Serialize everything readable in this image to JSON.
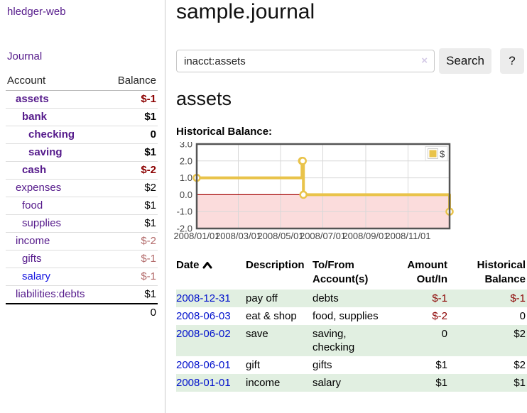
{
  "app": {
    "title": "hledger-web"
  },
  "sidebar": {
    "journal_link": "Journal",
    "accounts_table": {
      "headers": [
        "Account",
        "Balance"
      ],
      "rows": [
        {
          "name": "assets",
          "depth": 1,
          "bold": true,
          "balance": "$-1",
          "balance_negative": true,
          "link_style": "visited"
        },
        {
          "name": "bank",
          "depth": 2,
          "bold": true,
          "balance": "$1",
          "balance_negative": false,
          "link_style": "visited"
        },
        {
          "name": "checking",
          "depth": 3,
          "bold": true,
          "balance": "0",
          "balance_negative": false,
          "link_style": "visited"
        },
        {
          "name": "saving",
          "depth": 3,
          "bold": true,
          "balance": "$1",
          "balance_negative": false,
          "link_style": "visited"
        },
        {
          "name": "cash",
          "depth": 2,
          "bold": true,
          "balance": "$-2",
          "balance_negative": true,
          "link_style": "visited"
        },
        {
          "name": "expenses",
          "depth": 1,
          "bold": false,
          "balance": "$2",
          "balance_negative": false,
          "link_style": "visited"
        },
        {
          "name": "food",
          "depth": 2,
          "bold": false,
          "balance": "$1",
          "balance_negative": false,
          "link_style": "visited"
        },
        {
          "name": "supplies",
          "depth": 2,
          "bold": false,
          "balance": "$1",
          "balance_negative": false,
          "link_style": "visited"
        },
        {
          "name": "income",
          "depth": 1,
          "bold": false,
          "balance": "$-2",
          "balance_negative": true,
          "link_style": "visited"
        },
        {
          "name": "gifts",
          "depth": 2,
          "bold": false,
          "balance": "$-1",
          "balance_negative": true,
          "link_style": "visited"
        },
        {
          "name": "salary",
          "depth": 2,
          "bold": false,
          "balance": "$-1",
          "balance_negative": true,
          "link_style": "unvisited"
        },
        {
          "name": "liabilities:debts",
          "depth": 1,
          "bold": false,
          "balance": "$1",
          "balance_negative": false,
          "link_style": "visited"
        }
      ],
      "total": "0"
    }
  },
  "main": {
    "title": "sample.journal",
    "search": {
      "value": "inacct:assets",
      "clear_icon": "×",
      "button_label": "Search",
      "help_label": "?"
    },
    "account_heading": "assets",
    "chart_label": "Historical Balance:"
  },
  "chart_data": {
    "type": "line",
    "style": "steps",
    "title": "Historical Balance:",
    "series": [
      {
        "name": "$",
        "color": "#e9c34a",
        "points": [
          {
            "date": "2008-01-01",
            "day": 0,
            "value": 1
          },
          {
            "date": "2008-06-01",
            "day": 152,
            "value": 2
          },
          {
            "date": "2008-06-02",
            "day": 153,
            "value": 2
          },
          {
            "date": "2008-06-03",
            "day": 154,
            "value": 0
          },
          {
            "date": "2008-12-31",
            "day": 365,
            "value": -1
          }
        ]
      }
    ],
    "x_ticks": [
      {
        "day": 0,
        "label": "2008/01/01"
      },
      {
        "day": 60,
        "label": "2008/03/01"
      },
      {
        "day": 121,
        "label": "2008/05/01"
      },
      {
        "day": 182,
        "label": "2008/07/01"
      },
      {
        "day": 244,
        "label": "2008/09/01"
      },
      {
        "day": 305,
        "label": "2008/11/01"
      }
    ],
    "x_range_days": [
      0,
      365
    ],
    "y_ticks": [
      "3.0",
      "2.0",
      "1.0",
      "0.0",
      "-1.0",
      "-2.0"
    ],
    "ylim": [
      -2,
      3
    ],
    "grid": true,
    "legend": {
      "label": "$",
      "position": "top-right"
    },
    "negative_region_color": "#fbdcdc",
    "zero_line_color": "#a40000",
    "border_color": "#545454"
  },
  "transactions": {
    "headers": {
      "date": "Date",
      "description": "Description",
      "accounts": "To/From Account(s)",
      "amount": "Amount Out/In",
      "balance": "Historical Balance"
    },
    "sort": {
      "column": "date",
      "direction": "ascending"
    },
    "rows": [
      {
        "date": "2008-12-31",
        "description": "pay off",
        "accounts": "debts",
        "amount": "$-1",
        "amount_negative": true,
        "balance": "$-1",
        "balance_negative": true
      },
      {
        "date": "2008-06-03",
        "description": "eat & shop",
        "accounts": "food, supplies",
        "amount": "$-2",
        "amount_negative": true,
        "balance": "0",
        "balance_negative": false
      },
      {
        "date": "2008-06-02",
        "description": "save",
        "accounts": "saving, checking",
        "amount": "0",
        "amount_negative": false,
        "balance": "$2",
        "balance_negative": false
      },
      {
        "date": "2008-06-01",
        "description": "gift",
        "accounts": "gifts",
        "amount": "$1",
        "amount_negative": false,
        "balance": "$2",
        "balance_negative": false
      },
      {
        "date": "2008-01-01",
        "description": "income",
        "accounts": "salary",
        "amount": "$1",
        "amount_negative": false,
        "balance": "$1",
        "balance_negative": false
      }
    ]
  },
  "colors": {
    "link_purple": "#551a8b",
    "link_blue": "#0010cc",
    "negative": "#8b0000",
    "negative_muted": "#b36b6b",
    "row_green": "#e1efe1",
    "button_gray": "#ececec",
    "series_yellow": "#e9c34a"
  }
}
